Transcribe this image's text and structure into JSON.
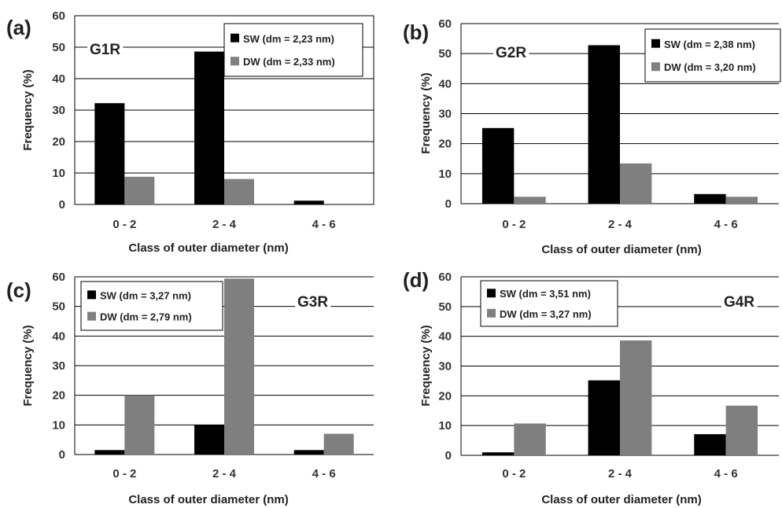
{
  "colors": {
    "SW": "#000000",
    "DW": "#7f7f7f",
    "grid": "#000000"
  },
  "chart_data": [
    {
      "panel_label": "(a)",
      "type": "bar",
      "sample": "G1R",
      "categories": [
        "0 - 2",
        "2 - 4",
        "4 - 6"
      ],
      "series": [
        {
          "name": "SW (dm = 2,23 nm)",
          "values": [
            32.2,
            48.6,
            1.2
          ]
        },
        {
          "name": "DW (dm = 2,33 nm)",
          "values": [
            8.8,
            8.1,
            0
          ]
        }
      ],
      "xlabel": "Class of outer diameter (nm)",
      "ylabel": "Frequency (%)",
      "ylim": [
        0,
        60
      ],
      "yticks": [
        "0",
        "10",
        "20",
        "30",
        "40",
        "50",
        "60"
      ],
      "grid": true,
      "legend": "top-right"
    },
    {
      "panel_label": "(b)",
      "type": "bar",
      "sample": "G2R",
      "categories": [
        "0 - 2",
        "2 - 4",
        "4 - 6"
      ],
      "series": [
        {
          "name": "SW (dm = 2,38 nm)",
          "values": [
            25.2,
            52.8,
            3.2
          ]
        },
        {
          "name": "DW (dm = 3,20 nm)",
          "values": [
            2.3,
            13.4,
            2.3
          ]
        }
      ],
      "xlabel": "Class of outer diameter (nm)",
      "ylabel": "Frequency (%)",
      "ylim": [
        0,
        60
      ],
      "yticks": [
        "0",
        "10",
        "20",
        "30",
        "40",
        "50",
        "60"
      ],
      "grid": true,
      "legend": "top-right"
    },
    {
      "panel_label": "(c)",
      "type": "bar",
      "sample": "G3R",
      "categories": [
        "0 - 2",
        "2 - 4",
        "4 - 6"
      ],
      "series": [
        {
          "name": "SW (dm = 3,27 nm)",
          "values": [
            1.5,
            10.0,
            1.5
          ]
        },
        {
          "name": "DW (dm = 2,79 nm)",
          "values": [
            20.0,
            59.4,
            7.0
          ]
        }
      ],
      "xlabel": "Class of outer diameter (nm)",
      "ylabel": "Frequency (%)",
      "ylim": [
        0,
        60
      ],
      "yticks": [
        "0",
        "10",
        "20",
        "30",
        "40",
        "50",
        "60"
      ],
      "grid": true,
      "legend": "top-left"
    },
    {
      "panel_label": "(d)",
      "type": "bar",
      "sample": "G4R",
      "categories": [
        "0 - 2",
        "2 - 4",
        "4 - 6"
      ],
      "series": [
        {
          "name": "SW (dm = 3,51 nm)",
          "values": [
            1.0,
            25.2,
            7.1
          ]
        },
        {
          "name": "DW (dm = 3,27 nm)",
          "values": [
            10.7,
            38.6,
            16.7
          ]
        }
      ],
      "xlabel": "Class of outer diameter (nm)",
      "ylabel": "Frequency (%)",
      "ylim": [
        0,
        60
      ],
      "yticks": [
        "0",
        "10",
        "20",
        "30",
        "40",
        "50",
        "60"
      ],
      "grid": true,
      "legend": "top-left"
    }
  ]
}
